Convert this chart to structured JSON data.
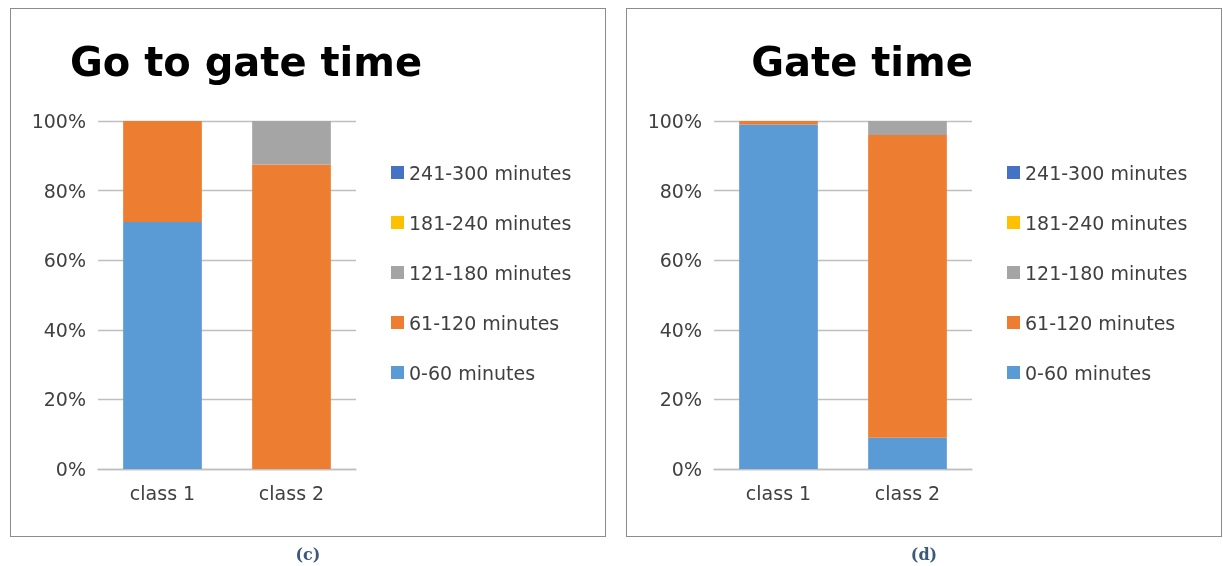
{
  "chart_data": [
    {
      "type": "bar",
      "title": "Go to gate time",
      "stacked": true,
      "categories": [
        "class 1",
        "class 2"
      ],
      "series": [
        {
          "name": "0-60 minutes",
          "color": "#5b9bd5",
          "values": [
            71,
            0
          ]
        },
        {
          "name": "61-120 minutes",
          "color": "#ed7d31",
          "values": [
            29,
            87.5
          ]
        },
        {
          "name": "121-180 minutes",
          "color": "#a5a5a5",
          "values": [
            0,
            12.5
          ]
        },
        {
          "name": "181-240 minutes",
          "color": "#ffc000",
          "values": [
            0,
            0
          ]
        },
        {
          "name": "241-300 minutes",
          "color": "#4472c4",
          "values": [
            0,
            0
          ]
        }
      ],
      "ylim": [
        0,
        100
      ],
      "yticks": [
        {
          "value": 0,
          "label": "0%"
        },
        {
          "value": 20,
          "label": "20%"
        },
        {
          "value": 40,
          "label": "40%"
        },
        {
          "value": 60,
          "label": "60%"
        },
        {
          "value": 80,
          "label": "80%"
        },
        {
          "value": 100,
          "label": "100%"
        }
      ],
      "grid": "y",
      "legend": "right",
      "annotations": [
        "(c)"
      ]
    },
    {
      "type": "bar",
      "title": "Gate time",
      "stacked": true,
      "categories": [
        "class 1",
        "class 2"
      ],
      "series": [
        {
          "name": "0-60 minutes",
          "color": "#5b9bd5",
          "values": [
            99,
            9
          ]
        },
        {
          "name": "61-120 minutes",
          "color": "#ed7d31",
          "values": [
            1,
            87
          ]
        },
        {
          "name": "121-180 minutes",
          "color": "#a5a5a5",
          "values": [
            0,
            4
          ]
        },
        {
          "name": "181-240 minutes",
          "color": "#ffc000",
          "values": [
            0,
            0
          ]
        },
        {
          "name": "241-300 minutes",
          "color": "#4472c4",
          "values": [
            0,
            0
          ]
        }
      ],
      "ylim": [
        0,
        100
      ],
      "yticks": [
        {
          "value": 0,
          "label": "0%"
        },
        {
          "value": 20,
          "label": "20%"
        },
        {
          "value": 40,
          "label": "40%"
        },
        {
          "value": 60,
          "label": "60%"
        },
        {
          "value": 80,
          "label": "80%"
        },
        {
          "value": 100,
          "label": "100%"
        }
      ],
      "grid": "y",
      "legend": "right",
      "annotations": [
        "(d)"
      ]
    }
  ]
}
